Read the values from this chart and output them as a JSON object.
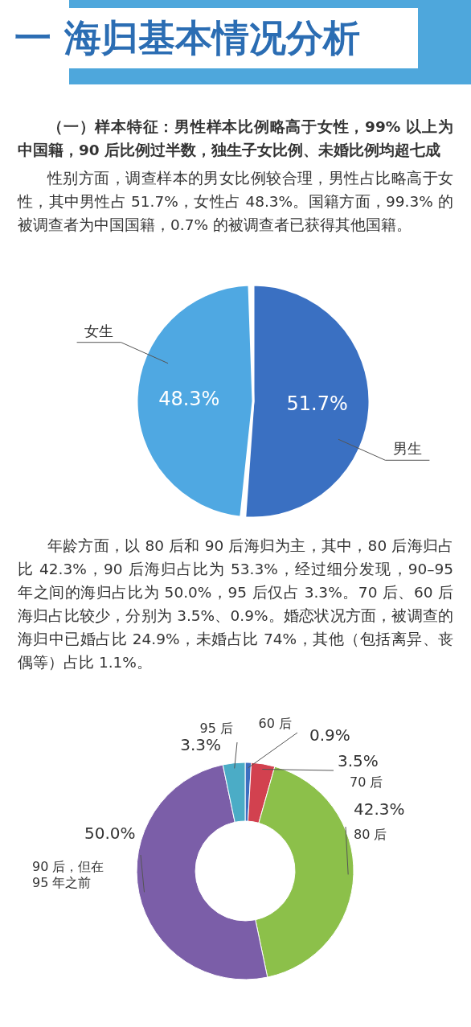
{
  "chart_data": [
    {
      "type": "pie",
      "title": "一 海归基本情况分析",
      "subtitle": "（一）样本特征：男性样本比例略高于女性，99% 以上为中国籍，90 后比例过半数，独生子女比例、未婚比例均超七成",
      "annotations": [
        "性别方面，调查样本的男女比例较合理，男性占比略高于女性，其中男性占 51.7%，女性占 48.3%。国籍方面，99.3% 的被调查者为中国国籍，0.7% 的被调查者已获得其他国籍。"
      ],
      "categories": [
        "男生",
        "女生"
      ],
      "values": [
        51.7,
        48.3
      ],
      "colors": [
        "#3a70c2",
        "#4fa8e2"
      ],
      "value_labels": [
        "51.7%",
        "48.3%"
      ]
    },
    {
      "type": "donut",
      "annotations": [
        "年龄方面，以 80 后和 90 后海归为主，其中，80 后海归占比 42.3%，90 后海归占比为 53.3%，经过细分发现，90–95 年之间的海归占比为 50.0%，95 后仅占 3.3%。70 后、60 后海归占比较少，分别为 3.5%、0.9%。婚恋状况方面，被调查的海归中已婚占比 24.9%，未婚占比 74%，其他（包括离异、丧偶等）占比 1.1%。"
      ],
      "categories": [
        "60 后",
        "70 后",
        "80 后",
        "90 后，但在\n95 年之前",
        "95 后"
      ],
      "values": [
        0.9,
        3.5,
        42.3,
        50.0,
        3.3
      ],
      "colors": [
        "#3d6fc0",
        "#d2414f",
        "#8cc04a",
        "#7b5ea8",
        "#4bacc6"
      ],
      "value_labels": [
        "0.9%",
        "3.5%",
        "42.3%",
        "50.0%",
        "3.3%"
      ]
    }
  ]
}
